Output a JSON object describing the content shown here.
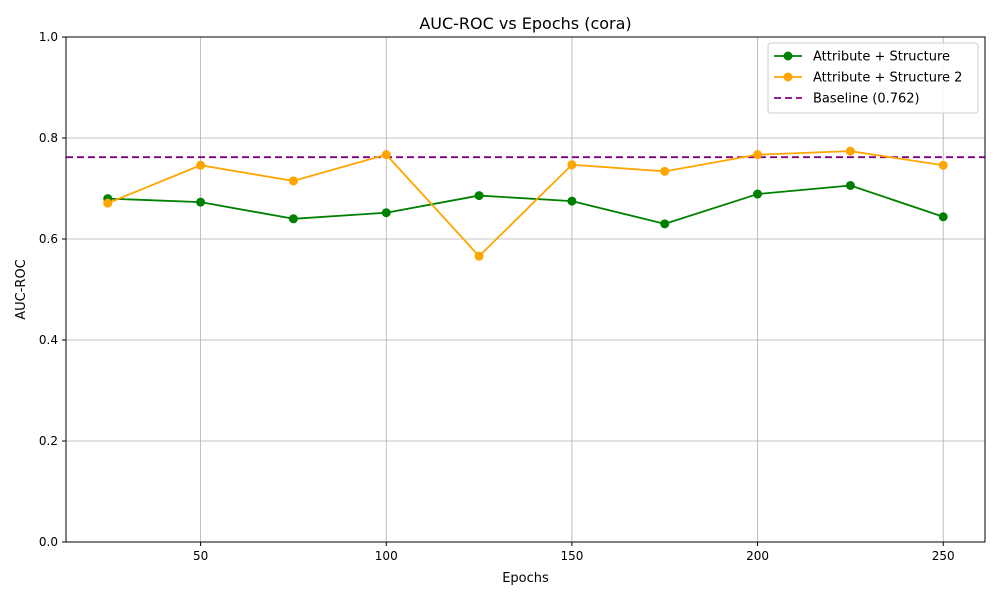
{
  "chart_data": {
    "type": "line",
    "title": "AUC-ROC vs Epochs (cora)",
    "xlabel": "Epochs",
    "ylabel": "AUC-ROC",
    "x": [
      25,
      50,
      75,
      100,
      125,
      150,
      175,
      200,
      225,
      250
    ],
    "xlim": [
      13.75,
      261.25
    ],
    "ylim": [
      0,
      1
    ],
    "xticks": [
      50,
      100,
      150,
      200,
      250
    ],
    "yticks": [
      0.0,
      0.2,
      0.4,
      0.6,
      0.8,
      1.0
    ],
    "ytick_labels": [
      "0.0",
      "0.2",
      "0.4",
      "0.6",
      "0.8",
      "1.0"
    ],
    "grid": true,
    "legend_position": "top-right",
    "series": [
      {
        "name": "Attribute + Structure",
        "color": "#008000",
        "marker": "circle",
        "values": [
          0.68,
          0.673,
          0.64,
          0.652,
          0.686,
          0.675,
          0.63,
          0.689,
          0.706,
          0.644
        ]
      },
      {
        "name": "Attribute + Structure 2",
        "color": "#FFA500",
        "marker": "circle",
        "values": [
          0.671,
          0.746,
          0.715,
          0.767,
          0.566,
          0.747,
          0.734,
          0.767,
          0.774,
          0.746
        ]
      }
    ],
    "baseline": {
      "name": "Baseline (0.762)",
      "value": 0.762,
      "color": "#800080",
      "style": "dashed"
    }
  }
}
